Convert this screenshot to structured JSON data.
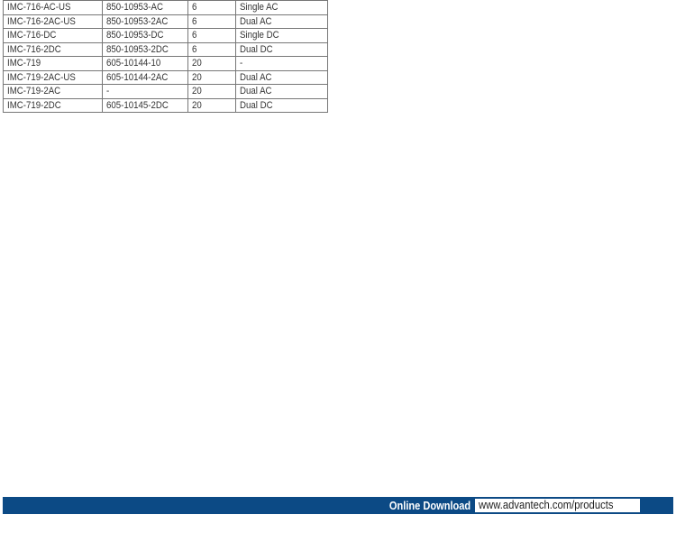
{
  "table": {
    "rows": [
      [
        "IMC-716-AC-US",
        "850-10953-AC",
        "6",
        "Single AC"
      ],
      [
        "IMC-716-2AC-US",
        "850-10953-2AC",
        "6",
        "Dual AC"
      ],
      [
        "IMC-716-DC",
        "850-10953-DC",
        "6",
        "Single DC"
      ],
      [
        "IMC-716-2DC",
        "850-10953-2DC",
        "6",
        "Dual DC"
      ],
      [
        "IMC-719",
        "605-10144-10",
        "20",
        "-"
      ],
      [
        "IMC-719-2AC-US",
        "605-10144-2AC",
        "20",
        "Dual AC"
      ],
      [
        "IMC-719-2AC",
        "-",
        "20",
        "Dual AC"
      ],
      [
        "IMC-719-2DC",
        "605-10145-2DC",
        "20",
        "Dual DC"
      ]
    ]
  },
  "footer": {
    "label": "Online Download",
    "url": "www.advantech.com/products",
    "color": "#0c4a85"
  }
}
